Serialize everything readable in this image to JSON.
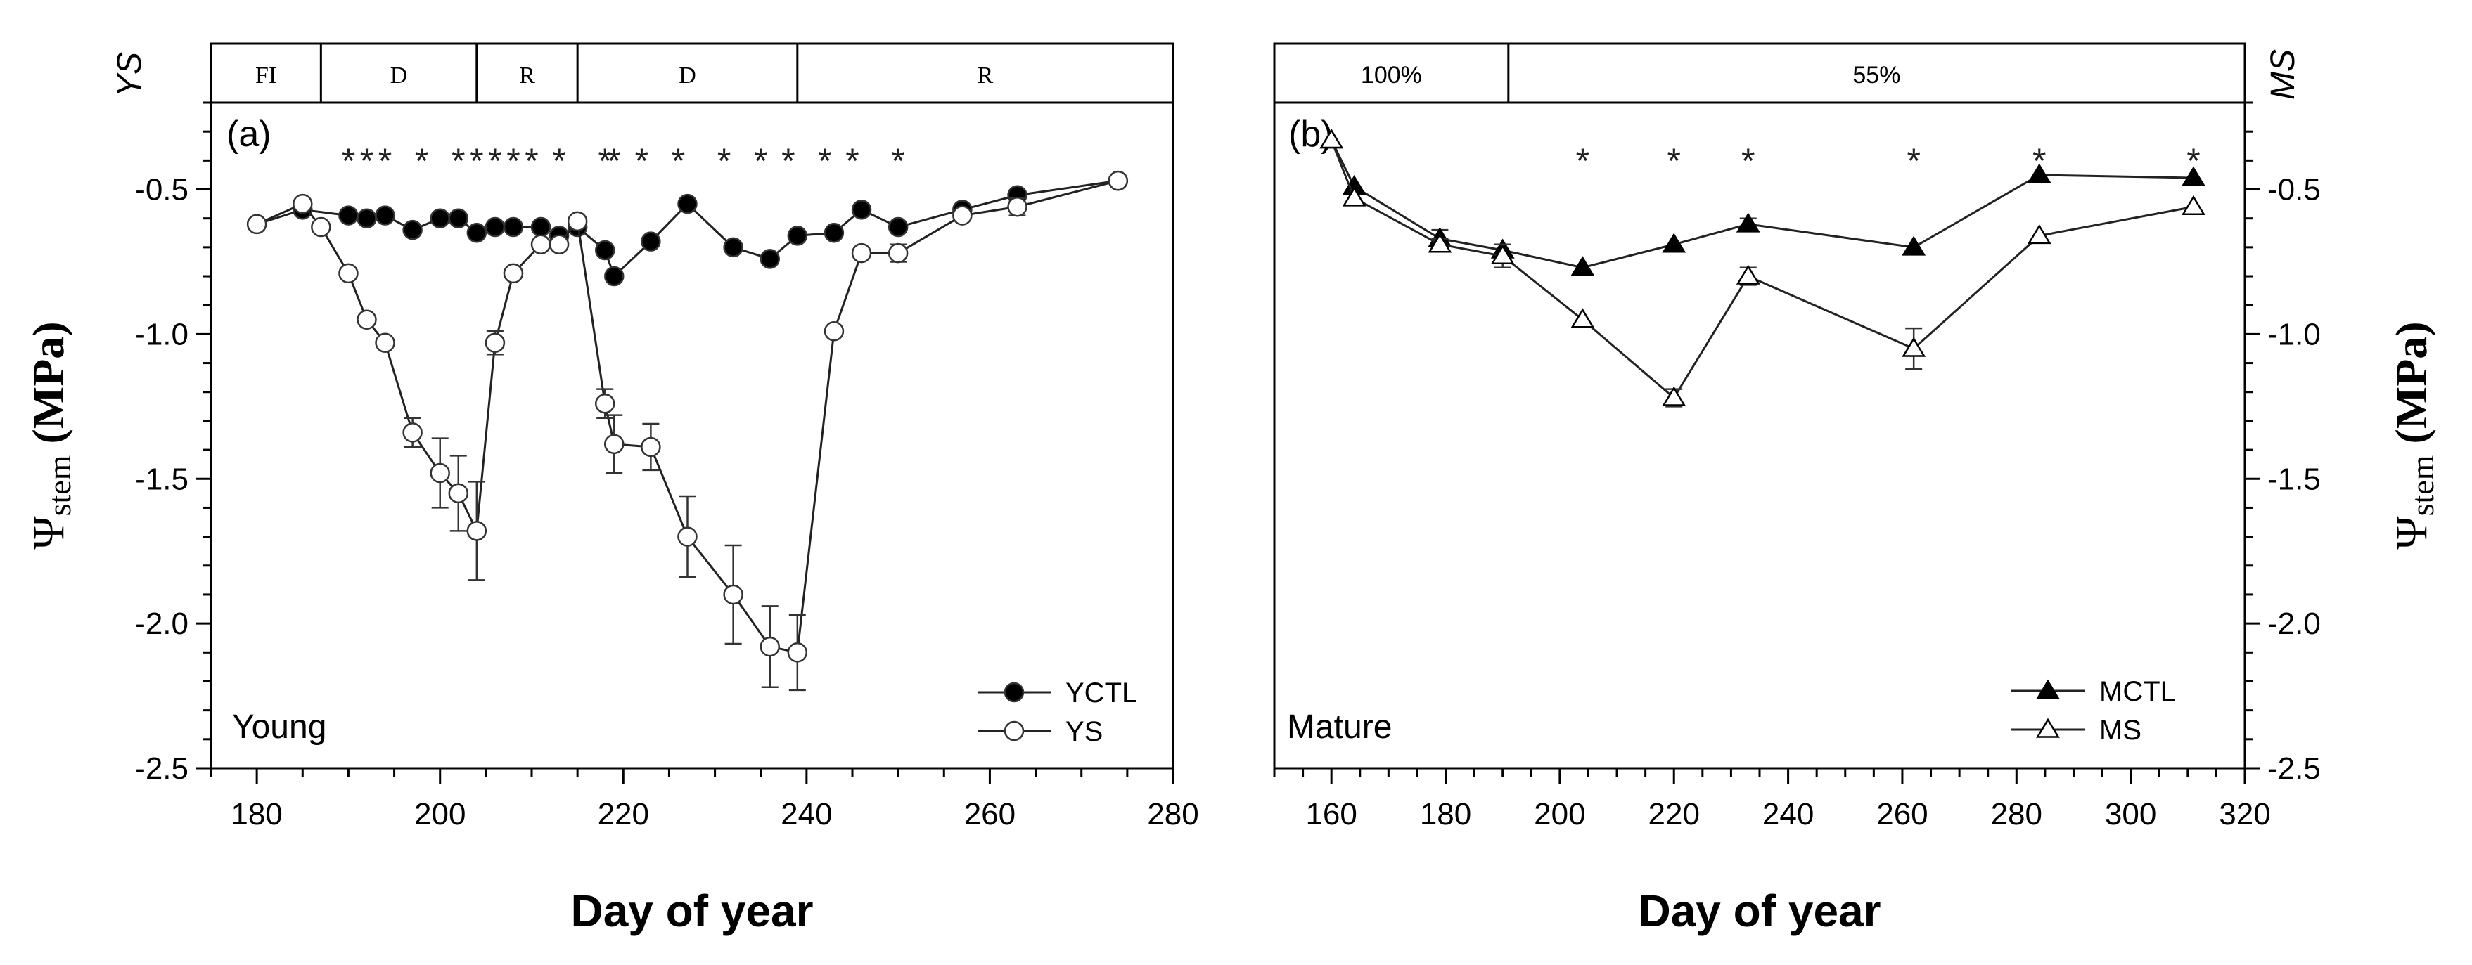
{
  "chart_data": [
    {
      "panel": "(a)",
      "type": "line",
      "xlabel": "Day of year",
      "ylabel": "Ψstem (MPa)",
      "ylabel_symbol": "Ψ",
      "ylabel_sub": "stem",
      "ylabel_unit": " (MPa)",
      "side_label": "YS",
      "corner_label": "Young",
      "xlim": [
        175,
        280
      ],
      "ylim": [
        -2.5,
        -0.2
      ],
      "xticks": [
        180,
        200,
        220,
        240,
        260,
        280
      ],
      "yticks": [
        -0.5,
        -1.0,
        -1.5,
        -2.0,
        -2.5
      ],
      "ytick_labels": [
        "-0.5",
        "-1.0",
        "-1.5",
        "-2.0",
        "-2.5"
      ],
      "legend_position": "bottom-right",
      "phases": [
        {
          "label": "FI",
          "start": 175,
          "end": 187
        },
        {
          "label": "D",
          "start": 187,
          "end": 204
        },
        {
          "label": "R",
          "start": 204,
          "end": 215
        },
        {
          "label": "D",
          "start": 215,
          "end": 239
        },
        {
          "label": "R",
          "start": 239,
          "end": 280
        }
      ],
      "significance_markers": [
        190,
        192,
        194,
        198,
        202,
        204,
        206,
        208,
        210,
        213,
        218,
        219,
        222,
        226,
        231,
        235,
        238,
        242,
        245,
        250
      ],
      "series": [
        {
          "name": "YCTL",
          "marker": "filled-circle",
          "x": [
            180,
            185,
            190,
            192,
            194,
            197,
            200,
            202,
            204,
            206,
            208,
            211,
            213,
            215,
            218,
            219,
            223,
            227,
            232,
            236,
            239,
            243,
            246,
            250,
            257,
            263,
            274
          ],
          "y": [
            -0.62,
            -0.57,
            -0.59,
            -0.6,
            -0.59,
            -0.64,
            -0.6,
            -0.6,
            -0.65,
            -0.63,
            -0.63,
            -0.63,
            -0.66,
            -0.63,
            -0.71,
            -0.8,
            -0.68,
            -0.55,
            -0.7,
            -0.74,
            -0.66,
            -0.65,
            -0.57,
            -0.63,
            -0.57,
            -0.52,
            -0.47
          ]
        },
        {
          "name": "YS",
          "marker": "open-circle",
          "x": [
            180,
            185,
            187,
            190,
            192,
            194,
            197,
            200,
            202,
            204,
            206,
            208,
            211,
            213,
            215,
            218,
            219,
            223,
            227,
            232,
            236,
            239,
            243,
            246,
            250,
            257,
            263,
            274
          ],
          "y": [
            -0.62,
            -0.55,
            -0.63,
            -0.79,
            -0.95,
            -1.03,
            -1.34,
            -1.48,
            -1.55,
            -1.68,
            -1.03,
            -0.79,
            -0.69,
            -0.69,
            -0.61,
            -1.24,
            -1.38,
            -1.39,
            -1.7,
            -1.9,
            -2.08,
            -2.1,
            -0.99,
            -0.72,
            -0.72,
            -0.59,
            -0.56,
            -0.47
          ],
          "yerr": [
            0,
            0,
            0,
            0,
            0,
            0,
            0.05,
            0.12,
            0.13,
            0.17,
            0.04,
            0,
            0,
            0,
            0,
            0.05,
            0.1,
            0.08,
            0.14,
            0.17,
            0.14,
            0.13,
            0,
            0,
            0.03,
            0,
            0.03,
            0
          ]
        }
      ]
    },
    {
      "panel": "(b)",
      "type": "line",
      "xlabel": "Day of year",
      "ylabel": "Ψstem (MPa)",
      "ylabel_symbol": "Ψ",
      "ylabel_sub": "stem",
      "ylabel_unit": " (MPa)",
      "side_label": "MS",
      "corner_label": "Mature",
      "xlim": [
        150,
        320
      ],
      "ylim": [
        -2.5,
        -0.2
      ],
      "xticks": [
        160,
        180,
        200,
        220,
        240,
        260,
        280,
        300,
        320
      ],
      "yticks": [
        -0.5,
        -1.0,
        -1.5,
        -2.0,
        -2.5
      ],
      "ytick_labels": [
        "-0.5",
        "-1.0",
        "-1.5",
        "-2.0",
        "-2.5"
      ],
      "legend_position": "bottom-right",
      "phases": [
        {
          "label": "100%",
          "start": 150,
          "end": 191
        },
        {
          "label": "55%",
          "start": 191,
          "end": 320
        }
      ],
      "significance_markers": [
        204,
        220,
        233,
        262,
        284,
        311
      ],
      "series": [
        {
          "name": "MCTL",
          "marker": "filled-triangle",
          "x": [
            160,
            164,
            179,
            190,
            204,
            220,
            233,
            262,
            284,
            311
          ],
          "y": [
            -0.33,
            -0.49,
            -0.67,
            -0.71,
            -0.77,
            -0.69,
            -0.62,
            -0.7,
            -0.45,
            -0.46
          ],
          "yerr": [
            0,
            0,
            0.03,
            0.02,
            0,
            0,
            0.02,
            0,
            0,
            0
          ]
        },
        {
          "name": "MS",
          "marker": "open-triangle",
          "x": [
            160,
            164,
            179,
            190,
            204,
            220,
            233,
            262,
            284,
            311
          ],
          "y": [
            -0.33,
            -0.53,
            -0.69,
            -0.73,
            -0.95,
            -1.22,
            -0.8,
            -1.05,
            -0.66,
            -0.56
          ],
          "yerr": [
            0,
            0,
            0.02,
            0.04,
            0,
            0.03,
            0.03,
            0.07,
            0,
            0
          ]
        }
      ]
    }
  ]
}
